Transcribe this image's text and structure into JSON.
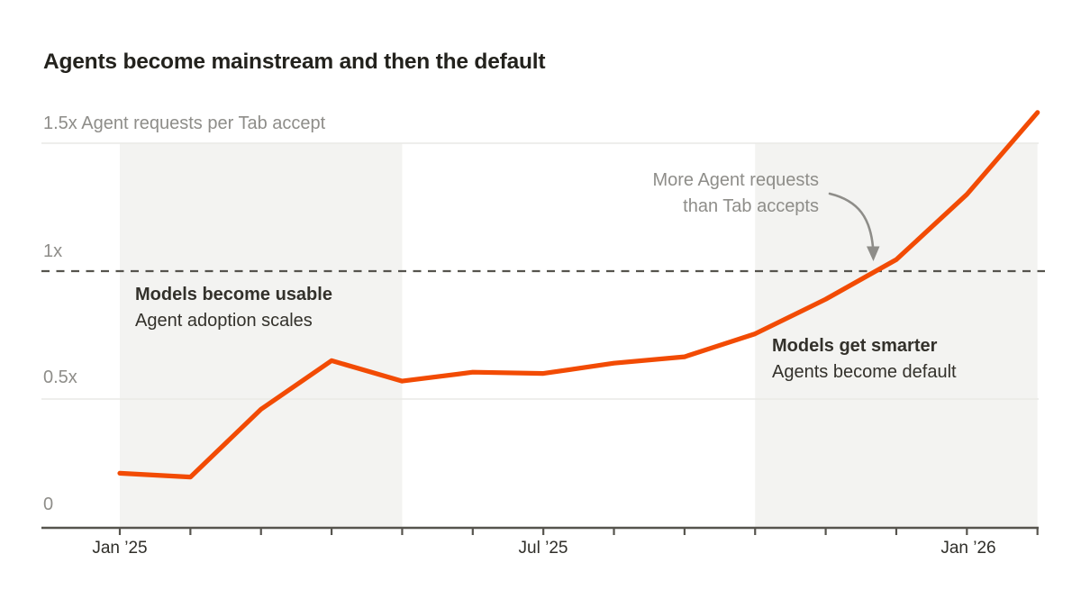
{
  "title": "Agents become mainstream and then the default",
  "chart_data": {
    "type": "line",
    "title": "Agents become mainstream and then the default",
    "series_name": "Agent requests per Tab accept",
    "x": [
      "Jan ’25",
      "Feb ’25",
      "Mar ’25",
      "Apr ’25",
      "May ’25",
      "Jun ’25",
      "Jul ’25",
      "Aug ’25",
      "Sep ’25",
      "Oct ’25",
      "Nov ’25",
      "Dec ’25",
      "Jan ’26",
      "Feb ’26"
    ],
    "values": [
      0.21,
      0.195,
      0.46,
      0.65,
      0.57,
      0.605,
      0.6,
      0.64,
      0.665,
      0.755,
      0.89,
      1.045,
      1.3,
      1.62
    ],
    "ylim": [
      0,
      1.65
    ],
    "grid": "horizontal-only",
    "legend": "none",
    "y_ticks": [
      {
        "value": 1.5,
        "label": "1.5x Agent requests per Tab accept",
        "gridline": "light"
      },
      {
        "value": 1,
        "label": "1x",
        "gridline": "dashed"
      },
      {
        "value": 0.5,
        "label": "0.5x",
        "gridline": "light"
      },
      {
        "value": 0,
        "label": "0",
        "gridline": "axis"
      }
    ],
    "x_axis_labels": [
      {
        "x_index": 0,
        "label": "Jan ’25"
      },
      {
        "x_index": 6,
        "label": "Jul ’25"
      },
      {
        "x_index": 12,
        "label": "Jan ’26"
      }
    ],
    "reference_line": {
      "value": 1,
      "style": "dashed",
      "meaning": "parity of Agent requests and Tab accepts"
    },
    "shaded_regions": [
      {
        "from_x_index": 0,
        "to_x_index": 4,
        "label_bold": "Models become usable",
        "label_regular": "Agent adoption scales"
      },
      {
        "from_x_index": 9,
        "to_x_index": 13,
        "label_bold": "Models get smarter",
        "label_regular": "Agents become default"
      }
    ],
    "callout": {
      "line1": "More Agent requests",
      "line2": "than Tab accepts",
      "points_to": "curve crossing 1x reference line"
    }
  },
  "axis_labels": {
    "y_top": "1.5x Agent requests per Tab accept",
    "y_1x": "1x",
    "y_05x": "0.5x",
    "y_0": "0",
    "x_jan25": "Jan ’25",
    "x_jul25": "Jul ’25",
    "x_jan26": "Jan ’26"
  },
  "annotations": {
    "region1_bold": "Models become usable",
    "region1_regular": "Agent adoption scales",
    "region2_bold": "Models get smarter",
    "region2_regular": "Agents become default",
    "callout_line1": "More Agent requests",
    "callout_line2": "than Tab accepts"
  },
  "colors": {
    "line": "#F24B04",
    "band": "#F3F3F1",
    "light_gridline": "#E9E9E6",
    "axis_and_dashes": "#56544E",
    "gray_text": "#8E8D89",
    "dark_text": "#33312B",
    "title_text": "#23221D",
    "background": "#FFFFFF"
  }
}
